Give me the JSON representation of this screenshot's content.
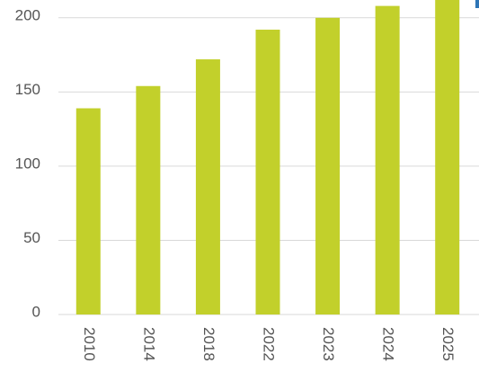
{
  "chart_data": {
    "type": "bar",
    "categories": [
      "2010",
      "2014",
      "2018",
      "2022",
      "2023",
      "2024",
      "2025"
    ],
    "values": [
      139,
      154,
      172,
      192,
      200,
      208,
      215
    ],
    "color": "#c2d02b",
    "ylim": [
      0,
      212
    ],
    "yticks": [
      0,
      50,
      100,
      150,
      200
    ],
    "grid": true
  }
}
